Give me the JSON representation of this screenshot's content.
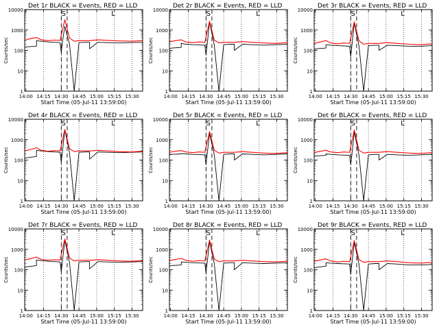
{
  "colors": {
    "events": "#000000",
    "lld": "#ff0000",
    "marker": "#000000",
    "background": "#ffffff"
  },
  "chart_data": [
    {
      "type": "line",
      "title": "Det 1r BLACK = Events, RED = LLD",
      "xlabel": "Start Time (05-Jul-11 13:59:00)",
      "ylabel": "Counts/sec",
      "yscale": "log",
      "ylim": [
        1,
        10000
      ],
      "yticks": [
        "1",
        "10",
        "100",
        "1000",
        "10000"
      ],
      "xticks": [
        "14:00",
        "14:15",
        "14:30",
        "14:45",
        "15:00",
        "15:15",
        "15:30"
      ],
      "letters": [
        "S",
        "L"
      ],
      "series": [
        {
          "name": "Events",
          "color": "#000000",
          "x_min": [
            0,
            2,
            10,
            10,
            14,
            20,
            30,
            31,
            32,
            34,
            38,
            42,
            46,
            52,
            55,
            55,
            62,
            70,
            80,
            90,
            100
          ],
          "y": [
            140,
            150,
            160,
            300,
            280,
            260,
            240,
            80,
            260,
            1500,
            200,
            1,
            240,
            250,
            250,
            120,
            250,
            240,
            230,
            240,
            250
          ]
        },
        {
          "name": "LLD",
          "color": "#ff0000",
          "x_min": [
            0,
            5,
            10,
            14,
            20,
            25,
            30,
            34,
            38,
            42,
            46,
            55,
            62,
            70,
            80,
            90,
            100
          ],
          "y": [
            320,
            380,
            430,
            330,
            300,
            320,
            310,
            3200,
            400,
            280,
            300,
            300,
            330,
            310,
            290,
            280,
            300
          ]
        }
      ]
    },
    {
      "type": "line",
      "title": "Det 2r BLACK = Events, RED = LLD",
      "xlabel": "Start Time (05-Jul-11 13:59:00)",
      "ylabel": "Counts/sec",
      "yscale": "log",
      "ylim": [
        1,
        10000
      ],
      "yticks": [
        "1",
        "10",
        "100",
        "1000",
        "10000"
      ],
      "xticks": [
        "14:00",
        "14:15",
        "14:30",
        "14:45",
        "15:00",
        "15:15",
        "15:30"
      ],
      "letters": [
        "S",
        "L"
      ],
      "series": [
        {
          "name": "Events",
          "color": "#000000",
          "x_min": [
            0,
            2,
            10,
            10,
            14,
            20,
            30,
            31,
            32,
            34,
            38,
            42,
            46,
            52,
            55,
            55,
            62,
            70,
            80,
            90,
            100
          ],
          "y": [
            120,
            130,
            140,
            220,
            200,
            190,
            180,
            60,
            190,
            2500,
            180,
            1,
            190,
            200,
            200,
            100,
            200,
            190,
            180,
            190,
            200
          ]
        },
        {
          "name": "LLD",
          "color": "#ff0000",
          "x_min": [
            0,
            5,
            10,
            14,
            20,
            25,
            30,
            34,
            38,
            42,
            46,
            55,
            62,
            70,
            80,
            90,
            100
          ],
          "y": [
            260,
            300,
            330,
            260,
            240,
            260,
            250,
            2700,
            320,
            230,
            250,
            250,
            270,
            250,
            230,
            220,
            240
          ]
        }
      ]
    },
    {
      "type": "line",
      "title": "Det 3r BLACK = Events, RED = LLD",
      "xlabel": "Start Time (05-Jul-11 13:59:00)",
      "ylabel": "Counts/sec",
      "yscale": "log",
      "ylim": [
        1,
        10000
      ],
      "yticks": [
        "1",
        "10",
        "100",
        "1000",
        "10000"
      ],
      "xticks": [
        "14:00",
        "14:15",
        "14:30",
        "14:45",
        "15:00",
        "15:15",
        "15:30"
      ],
      "letters": [
        "S",
        "L"
      ],
      "series": [
        {
          "name": "Events",
          "color": "#000000",
          "x_min": [
            0,
            2,
            10,
            10,
            14,
            20,
            30,
            31,
            32,
            34,
            38,
            42,
            46,
            52,
            55,
            55,
            62,
            70,
            80,
            90,
            100
          ],
          "y": [
            110,
            120,
            130,
            190,
            180,
            170,
            160,
            50,
            170,
            2200,
            160,
            1,
            170,
            180,
            180,
            100,
            180,
            170,
            160,
            160,
            170
          ]
        },
        {
          "name": "LLD",
          "color": "#ff0000",
          "x_min": [
            0,
            5,
            10,
            14,
            20,
            25,
            30,
            34,
            38,
            42,
            46,
            55,
            62,
            70,
            80,
            90,
            100
          ],
          "y": [
            220,
            260,
            300,
            230,
            210,
            230,
            220,
            2500,
            290,
            200,
            220,
            220,
            240,
            220,
            200,
            190,
            210
          ]
        }
      ]
    },
    {
      "type": "line",
      "title": "Det 4r BLACK = Events, RED = LLD",
      "xlabel": "Start Time (05-Jul-11 13:59:00)",
      "ylabel": "Counts/sec",
      "yscale": "log",
      "ylim": [
        1,
        10000
      ],
      "yticks": [
        "1",
        "10",
        "100",
        "1000",
        "10000"
      ],
      "xticks": [
        "14:00",
        "14:15",
        "14:30",
        "14:45",
        "15:00",
        "15:15",
        "15:30"
      ],
      "letters": [
        "S",
        "L"
      ],
      "series": [
        {
          "name": "Events",
          "color": "#000000",
          "x_min": [
            0,
            2,
            10,
            10,
            14,
            20,
            30,
            31,
            32,
            34,
            38,
            42,
            46,
            52,
            55,
            55,
            62,
            70,
            80,
            90,
            100
          ],
          "y": [
            120,
            130,
            150,
            300,
            280,
            260,
            240,
            80,
            260,
            3000,
            220,
            1,
            240,
            250,
            250,
            110,
            250,
            240,
            230,
            240,
            250
          ]
        },
        {
          "name": "LLD",
          "color": "#ff0000",
          "x_min": [
            0,
            5,
            10,
            14,
            20,
            25,
            30,
            34,
            38,
            42,
            46,
            55,
            62,
            70,
            80,
            90,
            100
          ],
          "y": [
            280,
            330,
            400,
            300,
            270,
            290,
            280,
            3200,
            360,
            260,
            280,
            280,
            300,
            280,
            260,
            250,
            270
          ]
        }
      ]
    },
    {
      "type": "line",
      "title": "Det 5r BLACK = Events, RED = LLD",
      "xlabel": "Start Time (05-Jul-11 13:59:00)",
      "ylabel": "Counts/sec",
      "yscale": "log",
      "ylim": [
        1,
        10000
      ],
      "yticks": [
        "1",
        "10",
        "100",
        "1000",
        "10000"
      ],
      "xticks": [
        "14:00",
        "14:15",
        "14:30",
        "14:45",
        "15:00",
        "15:15",
        "15:30"
      ],
      "letters": [
        "S",
        "L"
      ],
      "series": [
        {
          "name": "Events",
          "color": "#000000",
          "x_min": [
            0,
            2,
            10,
            10,
            14,
            20,
            30,
            31,
            32,
            34,
            38,
            42,
            46,
            52,
            55,
            55,
            62,
            70,
            80,
            90,
            100
          ],
          "y": [
            180,
            190,
            200,
            210,
            200,
            190,
            180,
            60,
            190,
            2000,
            180,
            1,
            190,
            200,
            200,
            100,
            200,
            190,
            180,
            190,
            200
          ]
        },
        {
          "name": "LLD",
          "color": "#ff0000",
          "x_min": [
            0,
            5,
            10,
            14,
            20,
            25,
            30,
            34,
            38,
            42,
            46,
            55,
            62,
            70,
            80,
            90,
            100
          ],
          "y": [
            240,
            270,
            290,
            250,
            230,
            250,
            240,
            2500,
            300,
            220,
            240,
            240,
            260,
            240,
            220,
            210,
            230
          ]
        }
      ]
    },
    {
      "type": "line",
      "title": "Det 6r BLACK = Events, RED = LLD",
      "xlabel": "Start Time (05-Jul-11 13:59:00)",
      "ylabel": "Counts/sec",
      "yscale": "log",
      "ylim": [
        1,
        10000
      ],
      "yticks": [
        "1",
        "10",
        "100",
        "1000",
        "10000"
      ],
      "xticks": [
        "14:00",
        "14:15",
        "14:30",
        "14:45",
        "15:00",
        "15:15",
        "15:30"
      ],
      "letters": [
        "S",
        "L"
      ],
      "series": [
        {
          "name": "Events",
          "color": "#000000",
          "x_min": [
            0,
            2,
            10,
            10,
            14,
            20,
            30,
            31,
            32,
            34,
            38,
            42,
            46,
            52,
            55,
            55,
            62,
            70,
            80,
            90,
            100
          ],
          "y": [
            150,
            160,
            170,
            200,
            190,
            180,
            170,
            60,
            180,
            2400,
            170,
            1,
            180,
            190,
            190,
            100,
            190,
            180,
            170,
            180,
            190
          ]
        },
        {
          "name": "LLD",
          "color": "#ff0000",
          "x_min": [
            0,
            5,
            10,
            14,
            20,
            25,
            30,
            34,
            38,
            42,
            46,
            55,
            62,
            70,
            80,
            90,
            100
          ],
          "y": [
            230,
            270,
            300,
            250,
            230,
            250,
            240,
            3000,
            300,
            220,
            240,
            240,
            260,
            240,
            220,
            210,
            230
          ]
        }
      ]
    },
    {
      "type": "line",
      "title": "Det 7r BLACK = Events, RED = LLD",
      "xlabel": "Start Time (05-Jul-11 13:59:00)",
      "ylabel": "Counts/sec",
      "yscale": "log",
      "ylim": [
        1,
        10000
      ],
      "yticks": [
        "1",
        "10",
        "100",
        "1000",
        "10000"
      ],
      "xticks": [
        "14:00",
        "14:15",
        "14:30",
        "14:45",
        "15:00",
        "15:15",
        "15:30"
      ],
      "letters": [
        "S",
        "L"
      ],
      "series": [
        {
          "name": "Events",
          "color": "#000000",
          "x_min": [
            0,
            2,
            10,
            10,
            14,
            20,
            30,
            31,
            32,
            34,
            38,
            42,
            46,
            52,
            55,
            55,
            62,
            70,
            80,
            90,
            100
          ],
          "y": [
            130,
            140,
            160,
            300,
            280,
            260,
            240,
            80,
            260,
            2800,
            220,
            1,
            240,
            250,
            250,
            110,
            250,
            240,
            230,
            240,
            250
          ]
        },
        {
          "name": "LLD",
          "color": "#ff0000",
          "x_min": [
            0,
            5,
            10,
            14,
            20,
            25,
            30,
            34,
            38,
            42,
            46,
            55,
            62,
            70,
            80,
            90,
            100
          ],
          "y": [
            300,
            350,
            420,
            320,
            290,
            310,
            300,
            3200,
            380,
            270,
            290,
            290,
            310,
            290,
            270,
            260,
            280
          ]
        }
      ]
    },
    {
      "type": "line",
      "title": "Det 8r BLACK = Events, RED = LLD",
      "xlabel": "Start Time (05-Jul-11 13:59:00)",
      "ylabel": "Counts/sec",
      "yscale": "log",
      "ylim": [
        1,
        10000
      ],
      "yticks": [
        "1",
        "10",
        "100",
        "1000",
        "10000"
      ],
      "xticks": [
        "14:00",
        "14:15",
        "14:30",
        "14:45",
        "15:00",
        "15:15",
        "15:30"
      ],
      "letters": [
        "S",
        "L"
      ],
      "series": [
        {
          "name": "Events",
          "color": "#000000",
          "x_min": [
            0,
            2,
            10,
            10,
            14,
            20,
            30,
            31,
            32,
            34,
            38,
            42,
            46,
            52,
            55,
            55,
            62,
            70,
            80,
            90,
            100
          ],
          "y": [
            150,
            160,
            170,
            240,
            230,
            220,
            210,
            70,
            220,
            2400,
            200,
            1,
            210,
            220,
            220,
            100,
            220,
            210,
            200,
            210,
            220
          ]
        },
        {
          "name": "LLD",
          "color": "#ff0000",
          "x_min": [
            0,
            5,
            10,
            14,
            20,
            25,
            30,
            34,
            38,
            42,
            46,
            55,
            62,
            70,
            80,
            90,
            100
          ],
          "y": [
            280,
            320,
            360,
            290,
            260,
            280,
            270,
            2800,
            330,
            250,
            270,
            270,
            290,
            270,
            250,
            240,
            260
          ]
        }
      ]
    },
    {
      "type": "line",
      "title": "Det 9r BLACK = Events, RED = LLD",
      "xlabel": "Start Time (05-Jul-11 13:59:00)",
      "ylabel": "Counts/sec",
      "yscale": "log",
      "ylim": [
        1,
        10000
      ],
      "yticks": [
        "1",
        "10",
        "100",
        "1000",
        "10000"
      ],
      "xticks": [
        "14:00",
        "14:15",
        "14:30",
        "14:45",
        "15:00",
        "15:15",
        "15:30"
      ],
      "letters": [
        "S",
        "L"
      ],
      "series": [
        {
          "name": "Events",
          "color": "#000000",
          "x_min": [
            0,
            2,
            10,
            10,
            14,
            20,
            30,
            31,
            32,
            34,
            38,
            42,
            46,
            52,
            55,
            55,
            62,
            70,
            80,
            90,
            100
          ],
          "y": [
            120,
            130,
            150,
            220,
            210,
            200,
            190,
            60,
            200,
            2200,
            180,
            1,
            190,
            200,
            200,
            100,
            200,
            190,
            170,
            170,
            180
          ]
        },
        {
          "name": "LLD",
          "color": "#ff0000",
          "x_min": [
            0,
            5,
            10,
            14,
            20,
            25,
            30,
            34,
            38,
            42,
            46,
            55,
            62,
            70,
            80,
            90,
            100
          ],
          "y": [
            260,
            300,
            340,
            270,
            240,
            260,
            250,
            2700,
            310,
            230,
            250,
            250,
            270,
            250,
            220,
            210,
            230
          ]
        }
      ]
    }
  ]
}
